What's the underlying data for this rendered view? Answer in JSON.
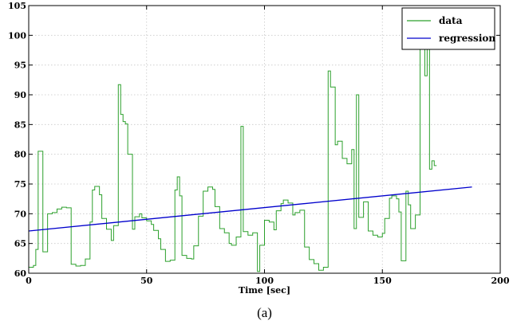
{
  "chart_data": {
    "type": "line",
    "title": "",
    "xlabel": "Time [sec]",
    "ylabel": "",
    "xlim": [
      0,
      200
    ],
    "ylim": [
      60,
      105
    ],
    "xticks": [
      0,
      50,
      100,
      150,
      200
    ],
    "yticks": [
      60,
      65,
      70,
      75,
      80,
      85,
      90,
      95,
      100,
      105
    ],
    "grid": true,
    "legend": {
      "position": "top-right",
      "entries": [
        "data",
        "regression"
      ]
    },
    "series": [
      {
        "name": "data",
        "color": "#2ca02c",
        "style": "steps",
        "points": [
          [
            0,
            61
          ],
          [
            2,
            61.3
          ],
          [
            3,
            64
          ],
          [
            4,
            80.5
          ],
          [
            6,
            63.6
          ],
          [
            8,
            70
          ],
          [
            10,
            70.2
          ],
          [
            12,
            70.8
          ],
          [
            14,
            71.1
          ],
          [
            16,
            71
          ],
          [
            18,
            61.5
          ],
          [
            20,
            61.2
          ],
          [
            22,
            61.3
          ],
          [
            24,
            62.4
          ],
          [
            26,
            68.6
          ],
          [
            27,
            74
          ],
          [
            28,
            74.6
          ],
          [
            30,
            73.2
          ],
          [
            31,
            69.2
          ],
          [
            33,
            67.4
          ],
          [
            35,
            65.5
          ],
          [
            36,
            68
          ],
          [
            38,
            91.7
          ],
          [
            39,
            86.7
          ],
          [
            40,
            85.5
          ],
          [
            41,
            85.1
          ],
          [
            42,
            80
          ],
          [
            44,
            67.4
          ],
          [
            45,
            69.5
          ],
          [
            47,
            70
          ],
          [
            48,
            69.3
          ],
          [
            50,
            68.8
          ],
          [
            52,
            68.2
          ],
          [
            53,
            67.2
          ],
          [
            55,
            65.8
          ],
          [
            56,
            64
          ],
          [
            58,
            62
          ],
          [
            60,
            62.2
          ],
          [
            62,
            74
          ],
          [
            63,
            76.2
          ],
          [
            64,
            73
          ],
          [
            65,
            63
          ],
          [
            67,
            62.5
          ],
          [
            69,
            62.4
          ],
          [
            70,
            64.6
          ],
          [
            72,
            69.6
          ],
          [
            74,
            73.8
          ],
          [
            76,
            74.5
          ],
          [
            78,
            74.1
          ],
          [
            79,
            71.2
          ],
          [
            81,
            67.5
          ],
          [
            83,
            66.8
          ],
          [
            85,
            65
          ],
          [
            86,
            64.7
          ],
          [
            88,
            66.1
          ],
          [
            90,
            84.7
          ],
          [
            91,
            67
          ],
          [
            93,
            66.4
          ],
          [
            95,
            66.8
          ],
          [
            97,
            60.3
          ],
          [
            98,
            64.7
          ],
          [
            100,
            68.9
          ],
          [
            102,
            68.6
          ],
          [
            104,
            67.3
          ],
          [
            105,
            70.5
          ],
          [
            107,
            71.7
          ],
          [
            108,
            72.3
          ],
          [
            110,
            71.8
          ],
          [
            112,
            69.8
          ],
          [
            113,
            70.2
          ],
          [
            115,
            70.6
          ],
          [
            117,
            64.4
          ],
          [
            119,
            62.3
          ],
          [
            121,
            61.6
          ],
          [
            123,
            60.5
          ],
          [
            125,
            61
          ],
          [
            127,
            94
          ],
          [
            128,
            91.3
          ],
          [
            130,
            81.6
          ],
          [
            131,
            82.2
          ],
          [
            133,
            79.3
          ],
          [
            135,
            78.4
          ],
          [
            137,
            80.8
          ],
          [
            138,
            67.5
          ],
          [
            139,
            90
          ],
          [
            140,
            69.4
          ],
          [
            142,
            72
          ],
          [
            144,
            67.1
          ],
          [
            146,
            66.4
          ],
          [
            148,
            66.1
          ],
          [
            150,
            66.7
          ],
          [
            151,
            69.2
          ],
          [
            153,
            72.6
          ],
          [
            154,
            73
          ],
          [
            156,
            72.5
          ],
          [
            157,
            70.3
          ],
          [
            158,
            62.1
          ],
          [
            160,
            73.8
          ],
          [
            161,
            71.5
          ],
          [
            162,
            67.5
          ],
          [
            164,
            69.8
          ],
          [
            166,
            101.8
          ],
          [
            168,
            93.2
          ],
          [
            169,
            97.7
          ],
          [
            170,
            77.5
          ],
          [
            171,
            78.9
          ],
          [
            172,
            78.1
          ]
        ]
      },
      {
        "name": "regression",
        "color": "#0000cc",
        "style": "line",
        "points": [
          [
            0,
            67.1
          ],
          [
            188,
            74.5
          ]
        ]
      }
    ],
    "caption": "(a)"
  }
}
